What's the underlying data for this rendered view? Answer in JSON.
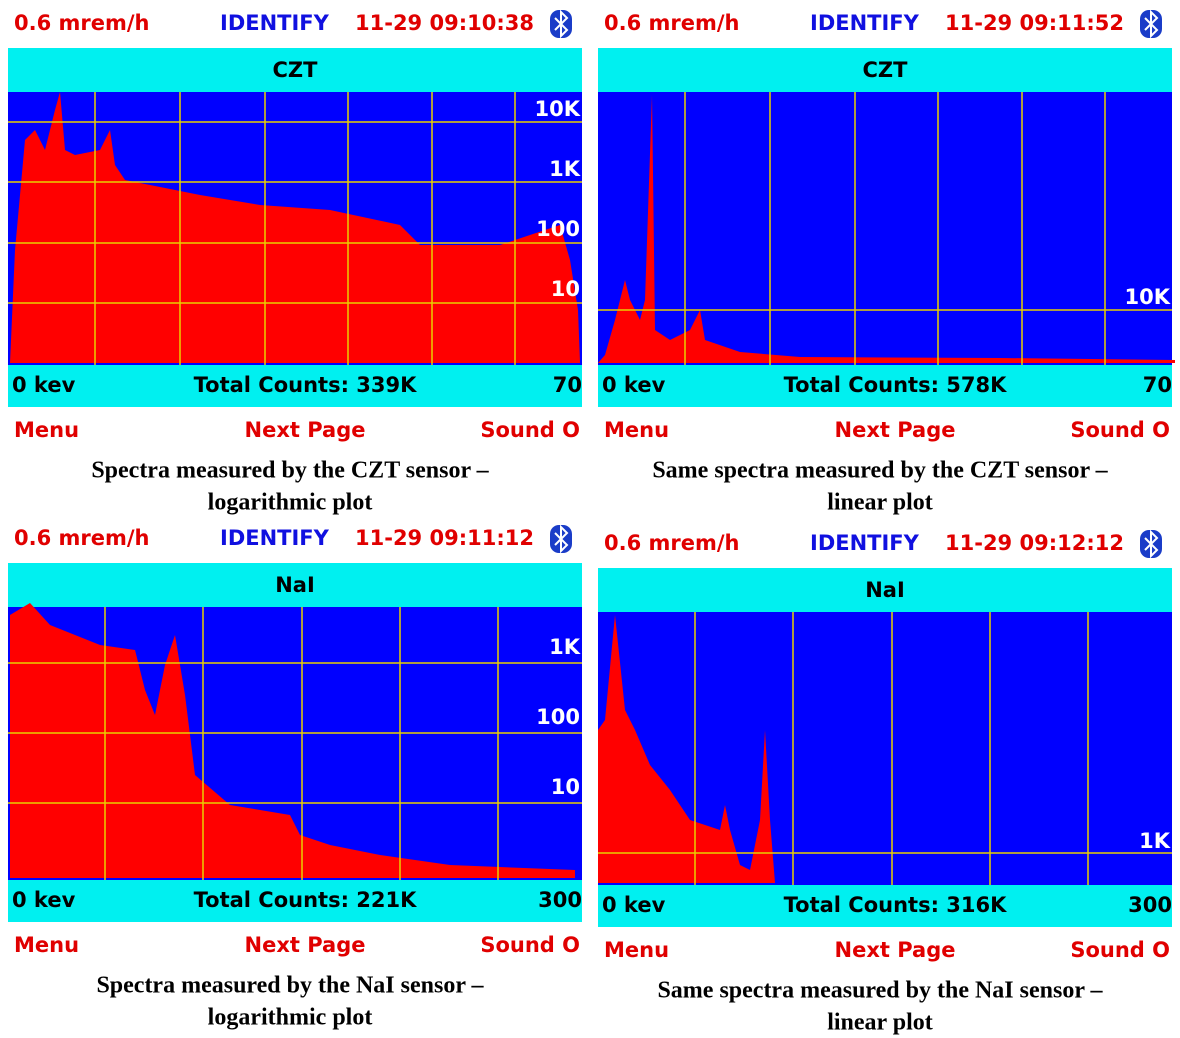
{
  "panels": [
    {
      "status": {
        "dose": "0.6 mrem/h",
        "mode": "IDENTIFY",
        "time": "11-29 09:10:38"
      },
      "detector": "CZT",
      "y_labels": [
        "10K",
        "1K",
        "100",
        "10"
      ],
      "footer": {
        "start": "0 kev",
        "total": "Total Counts: 339K",
        "end": "70"
      },
      "softkeys": [
        "Menu",
        "Next Page",
        "Sound O"
      ],
      "caption": [
        "Spectra measured by the CZT sensor –",
        "logarithmic plot"
      ]
    },
    {
      "status": {
        "dose": "0.6 mrem/h",
        "mode": "IDENTIFY",
        "time": "11-29 09:11:52"
      },
      "detector": "CZT",
      "y_labels": [
        "10K"
      ],
      "footer": {
        "start": "0 kev",
        "total": "Total Counts: 578K",
        "end": "70"
      },
      "softkeys": [
        "Menu",
        "Next Page",
        "Sound O"
      ],
      "caption": [
        "Same spectra measured by the CZT sensor –",
        "linear plot"
      ]
    },
    {
      "status": {
        "dose": "0.6 mrem/h",
        "mode": "IDENTIFY",
        "time": "11-29 09:11:12"
      },
      "detector": "NaI",
      "y_labels": [
        "1K",
        "100",
        "10"
      ],
      "footer": {
        "start": "0 kev",
        "total": "Total Counts: 221K",
        "end": "300"
      },
      "softkeys": [
        "Menu",
        "Next Page",
        "Sound O"
      ],
      "caption": [
        "Spectra measured by the NaI sensor –",
        "logarithmic plot"
      ]
    },
    {
      "status": {
        "dose": "0.6 mrem/h",
        "mode": "IDENTIFY",
        "time": "11-29 09:12:12"
      },
      "detector": "NaI",
      "y_labels": [
        "1K"
      ],
      "footer": {
        "start": "0 kev",
        "total": "Total Counts: 316K",
        "end": "300"
      },
      "softkeys": [
        "Menu",
        "Next Page",
        "Sound O"
      ],
      "caption": [
        "Same spectra measured by the NaI sensor –",
        "linear plot"
      ]
    }
  ]
}
